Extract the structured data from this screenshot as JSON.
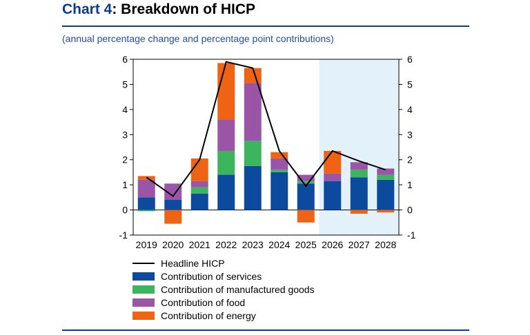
{
  "header": {
    "title_lead": "Chart 4",
    "title_rest": ": Breakdown of HICP",
    "subtitle": "(annual percentage change and percentage point contributions)"
  },
  "legend": {
    "headline": "Headline HICP",
    "services": "Contribution of services",
    "goods": "Contribution of manufactured goods",
    "food": "Contribution of food",
    "energy": "Contribution of energy"
  },
  "colors": {
    "services": "#0b4a9c",
    "goods": "#3cb55e",
    "food": "#9b55a7",
    "energy": "#ef6314",
    "headline": "#000000",
    "projection_shade": "#e3f1fb",
    "accent": "#0a3e8c"
  },
  "chart_data": {
    "type": "bar",
    "stacked": true,
    "categories": [
      "2019",
      "2020",
      "2021",
      "2022",
      "2023",
      "2024",
      "2025",
      "2026",
      "2027",
      "2028"
    ],
    "ylim": [
      -1,
      6
    ],
    "yticks": [
      -1,
      0,
      1,
      2,
      3,
      4,
      5,
      6
    ],
    "dual_y_axis": true,
    "projection_shaded_from": "2026",
    "series": [
      {
        "name": "Contribution of services",
        "key": "services",
        "values": [
          0.5,
          0.4,
          0.65,
          1.4,
          1.75,
          1.5,
          1.05,
          1.15,
          1.3,
          1.2
        ]
      },
      {
        "name": "Contribution of manufactured goods",
        "key": "goods",
        "values": [
          -0.05,
          0.0,
          0.25,
          0.95,
          1.0,
          0.1,
          0.1,
          0.0,
          0.3,
          0.2
        ]
      },
      {
        "name": "Contribution of food",
        "key": "food",
        "values": [
          0.7,
          0.65,
          0.25,
          1.25,
          2.3,
          0.45,
          0.25,
          0.3,
          0.3,
          0.25
        ]
      },
      {
        "name": "Contribution of energy",
        "key": "energy",
        "values": [
          0.15,
          -0.55,
          0.9,
          2.25,
          0.6,
          0.25,
          -0.5,
          0.9,
          -0.15,
          -0.1
        ]
      }
    ],
    "line": {
      "name": "Headline HICP",
      "values": [
        1.3,
        0.55,
        2.0,
        5.9,
        5.65,
        2.35,
        0.95,
        2.35,
        1.95,
        1.6
      ]
    }
  }
}
